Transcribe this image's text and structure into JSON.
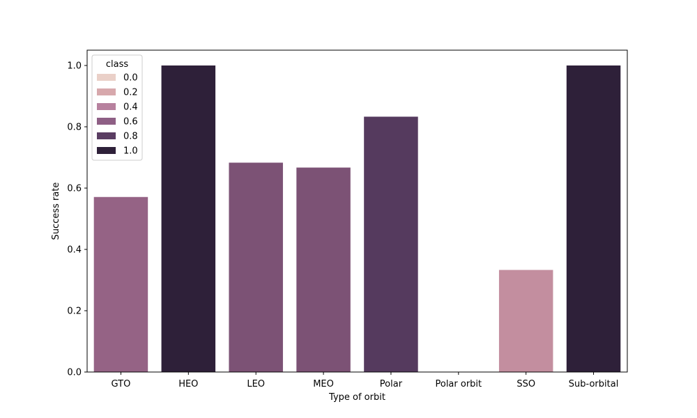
{
  "chart_data": {
    "type": "bar",
    "xlabel": "Type of orbit",
    "ylabel": "Success rate",
    "ylim": [
      0,
      1.05
    ],
    "yticks": [
      {
        "value": 0.0,
        "label": "0.0"
      },
      {
        "value": 0.2,
        "label": "0.2"
      },
      {
        "value": 0.4,
        "label": "0.4"
      },
      {
        "value": 0.6,
        "label": "0.6"
      },
      {
        "value": 0.8,
        "label": "0.8"
      },
      {
        "value": 1.0,
        "label": "1.0"
      }
    ],
    "categories": [
      "GTO",
      "HEO",
      "LEO",
      "MEO",
      "Polar",
      "Polar orbit",
      "SSO",
      "Sub-orbital"
    ],
    "values": [
      0.571,
      1.0,
      0.683,
      0.667,
      0.833,
      0.0,
      0.333,
      1.0
    ],
    "bar_colors": [
      "#956385",
      "#2e2039",
      "#7c5275",
      "#7c5275",
      "#553a5e",
      "#ffffff",
      "#c38e9f",
      "#2e2039"
    ],
    "grid": false,
    "legend": {
      "title": "class",
      "placement": "top-left",
      "entries": [
        {
          "label": "0.0",
          "color": "#ead0c8"
        },
        {
          "label": "0.2",
          "color": "#d7a8ac"
        },
        {
          "label": "0.4",
          "color": "#b7819e"
        },
        {
          "label": "0.6",
          "color": "#8e5f85"
        },
        {
          "label": "0.8",
          "color": "#5a3d62"
        },
        {
          "label": "1.0",
          "color": "#2e2039"
        }
      ]
    }
  }
}
